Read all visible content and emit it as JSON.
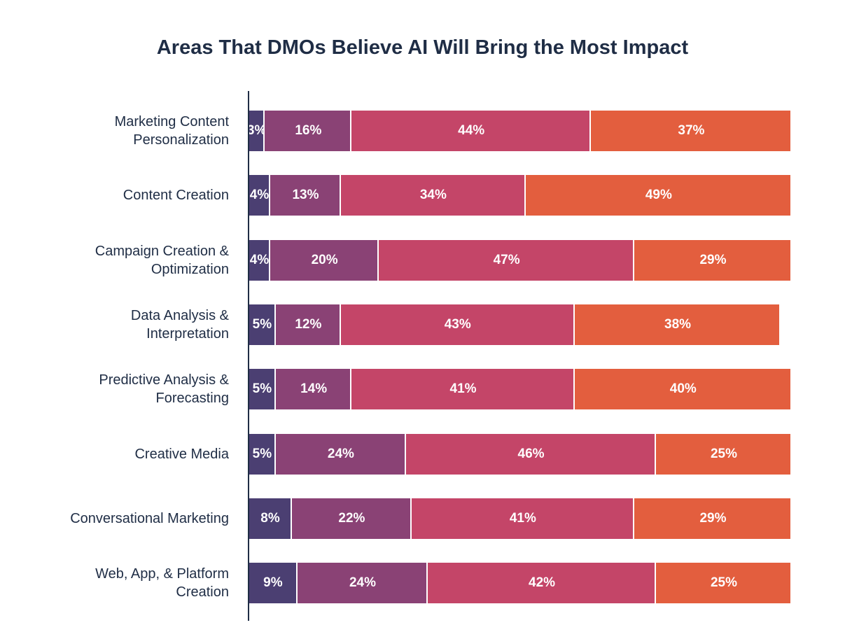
{
  "chart_data": {
    "type": "stacked-barh",
    "title": "Areas That DMOs Believe AI Will Bring the Most Impact",
    "categories": [
      "Marketing Content\nPersonalization",
      "Content Creation",
      "Campaign Creation &\nOptimization",
      "Data Analysis &\nInterpretation",
      "Predictive Analysis &\nForecasting",
      "Creative Media",
      "Conversational Marketing",
      "Web, App, & Platform\nCreation"
    ],
    "xlim": [
      0,
      100
    ],
    "series": [
      {
        "color": "#4b3f72",
        "values": [
          3,
          4,
          4,
          5,
          5,
          5,
          8,
          9
        ],
        "value_labels": [
          "3%",
          "4%",
          "4%",
          "5%",
          "5%",
          "5%",
          "8%",
          "9%"
        ]
      },
      {
        "color": "#8a4275",
        "values": [
          16,
          13,
          20,
          12,
          14,
          24,
          22,
          24
        ],
        "value_labels": [
          "16%",
          "13%",
          "20%",
          "12%",
          "14%",
          "24%",
          "22%",
          "24%"
        ]
      },
      {
        "color": "#c44568",
        "values": [
          44,
          34,
          47,
          43,
          41,
          46,
          41,
          42
        ],
        "value_labels": [
          "44%",
          "34%",
          "47%",
          "43%",
          "41%",
          "46%",
          "41%",
          "42%"
        ]
      },
      {
        "color": "#e35e3e",
        "values": [
          37,
          49,
          29,
          38,
          40,
          25,
          29,
          25
        ],
        "value_labels": [
          "37%",
          "49%",
          "29%",
          "38%",
          "40%",
          "25%",
          "29%",
          "25%"
        ]
      }
    ]
  }
}
